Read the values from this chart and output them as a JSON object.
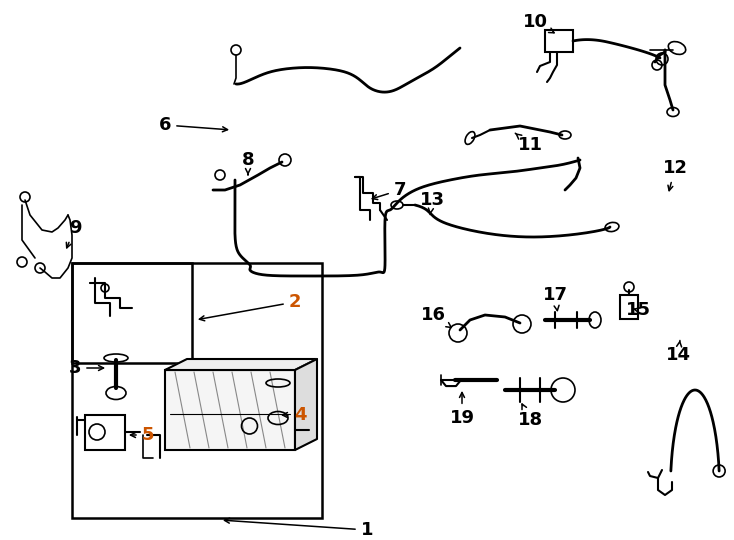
{
  "bg_color": "#ffffff",
  "line_color": "#000000",
  "fig_width": 7.34,
  "fig_height": 5.4,
  "dpi": 100,
  "lw_tube": 2.0,
  "lw_thin": 1.2,
  "lw_med": 1.5
}
